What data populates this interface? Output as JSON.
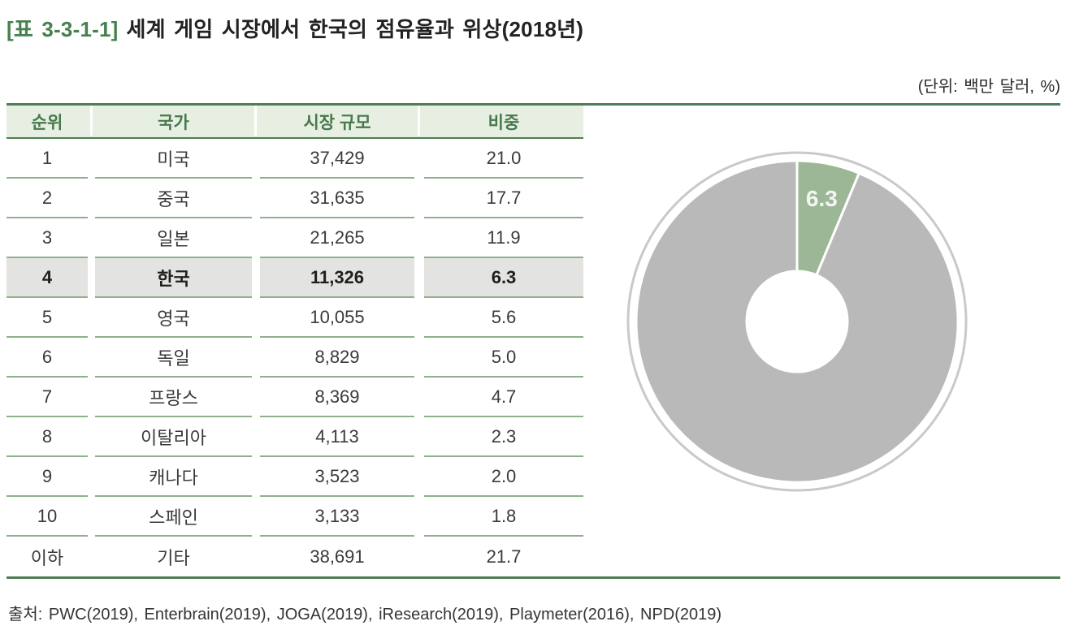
{
  "header": {
    "tag": "[표 3-3-1-1]",
    "title": "세계 게임 시장에서 한국의 점유율과 위상(2018년)",
    "unit_note": "(단위: 백만 달러, %)"
  },
  "table": {
    "columns": [
      "순위",
      "국가",
      "시장 규모",
      "비중"
    ],
    "rows": [
      {
        "rank": "1",
        "country": "미국",
        "market_size": "37,429",
        "share": "21.0",
        "highlight": false
      },
      {
        "rank": "2",
        "country": "중국",
        "market_size": "31,635",
        "share": "17.7",
        "highlight": false
      },
      {
        "rank": "3",
        "country": "일본",
        "market_size": "21,265",
        "share": "11.9",
        "highlight": false
      },
      {
        "rank": "4",
        "country": "한국",
        "market_size": "11,326",
        "share": "6.3",
        "highlight": true
      },
      {
        "rank": "5",
        "country": "영국",
        "market_size": "10,055",
        "share": "5.6",
        "highlight": false
      },
      {
        "rank": "6",
        "country": "독일",
        "market_size": "8,829",
        "share": "5.0",
        "highlight": false
      },
      {
        "rank": "7",
        "country": "프랑스",
        "market_size": "8,369",
        "share": "4.7",
        "highlight": false
      },
      {
        "rank": "8",
        "country": "이탈리아",
        "market_size": "4,113",
        "share": "2.3",
        "highlight": false
      },
      {
        "rank": "9",
        "country": "캐나다",
        "market_size": "3,523",
        "share": "2.0",
        "highlight": false
      },
      {
        "rank": "10",
        "country": "스페인",
        "market_size": "3,133",
        "share": "1.8",
        "highlight": false
      },
      {
        "rank": "이하",
        "country": "기타",
        "market_size": "38,691",
        "share": "21.7",
        "highlight": false
      }
    ]
  },
  "chart_data": {
    "type": "pie",
    "subtype": "donut",
    "direction": "clockwise",
    "start_angle_deg": 0,
    "inner_radius_ratio": 0.31,
    "slices": [
      {
        "name": "한국",
        "value": 6.3,
        "label": "6.3",
        "color": "#9bb795"
      },
      {
        "name": "기타",
        "value": 93.7,
        "label": "",
        "color": "#b9b9b9"
      }
    ],
    "label_color": "#f4f4f4",
    "ring_color": "#c9c9c9",
    "separator_color": "#ffffff"
  },
  "source": "출처: PWC(2019), Enterbrain(2019), JOGA(2019), iResearch(2019), Playmeter(2016), NPD(2019)",
  "colors": {
    "accent_green": "#4f7e54",
    "header_bg": "#e7efe2",
    "header_text": "#46794c",
    "row_line": "#8fb08d",
    "highlight_bg": "#e3e4e1",
    "title_tag_green": "#478050"
  }
}
